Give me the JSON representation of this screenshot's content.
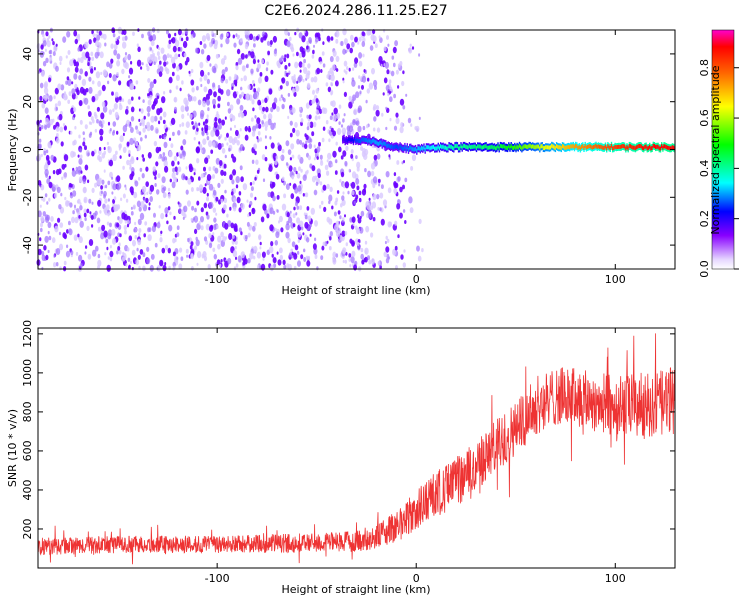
{
  "title": "C2E6.2024.286.11.25.E27",
  "colors": {
    "spectrogram_scatter": "#6a00ff",
    "snr_line": "#ee3333"
  },
  "chart_data": [
    {
      "type": "heatmap",
      "xlabel": "Height of straight line (km)",
      "ylabel": "Frequency (Hz)",
      "xlim": [
        -190,
        130
      ],
      "ylim": [
        -50,
        50
      ],
      "xticks": [
        -100,
        0,
        100
      ],
      "xtick_labels": [
        "-100",
        "0",
        "100"
      ],
      "yticks": [
        -40,
        -20,
        0,
        20,
        40
      ],
      "ytick_labels": [
        "-40",
        "-20",
        "0",
        "20",
        "40"
      ],
      "signal_band": {
        "x": [
          -37,
          -30,
          -20,
          -10,
          0,
          10,
          20,
          40,
          60,
          80,
          100,
          120,
          130
        ],
        "frequency_hz": [
          4,
          4,
          3,
          1,
          0,
          1,
          1,
          1,
          1,
          1,
          1,
          1,
          1
        ],
        "normalized_amplitude": [
          0.15,
          0.25,
          0.3,
          0.25,
          0.3,
          0.35,
          0.4,
          0.45,
          0.6,
          0.75,
          0.85,
          0.9,
          0.9
        ]
      },
      "noise_region_x": [
        -190,
        5
      ],
      "grid": false,
      "colorbar": {
        "label": "Normalized spectral amplitude",
        "range": [
          0,
          0.95
        ],
        "ticks": [
          0,
          0.2,
          0.4,
          0.6,
          0.8
        ],
        "tick_labels": [
          "0.0",
          "0.2",
          "0.4",
          "0.6",
          "0.8"
        ]
      }
    },
    {
      "type": "line",
      "xlabel": "Height of straight line (km)",
      "ylabel": "SNR (10 * v/v)",
      "xlim": [
        -190,
        130
      ],
      "ylim": [
        0,
        1230
      ],
      "xticks": [
        -100,
        0,
        100
      ],
      "xtick_labels": [
        "-100",
        "0",
        "100"
      ],
      "yticks": [
        200,
        400,
        600,
        800,
        1000,
        1200
      ],
      "ytick_labels": [
        "200",
        "400",
        "600",
        "800",
        "1000",
        "1200"
      ],
      "grid": false,
      "series": [
        {
          "x": [
            -190,
            -150,
            -100,
            -50,
            -25,
            -10,
            0,
            10,
            20,
            30,
            40,
            50,
            60,
            70,
            80,
            90,
            100,
            110,
            120,
            130
          ],
          "y_mean": [
            110,
            120,
            120,
            130,
            140,
            210,
            290,
            380,
            440,
            520,
            620,
            720,
            830,
            880,
            880,
            850,
            830,
            830,
            830,
            860
          ],
          "y_spread": [
            45,
            45,
            45,
            50,
            55,
            80,
            110,
            120,
            130,
            130,
            140,
            140,
            150,
            150,
            150,
            160,
            160,
            170,
            170,
            180
          ]
        }
      ]
    }
  ]
}
